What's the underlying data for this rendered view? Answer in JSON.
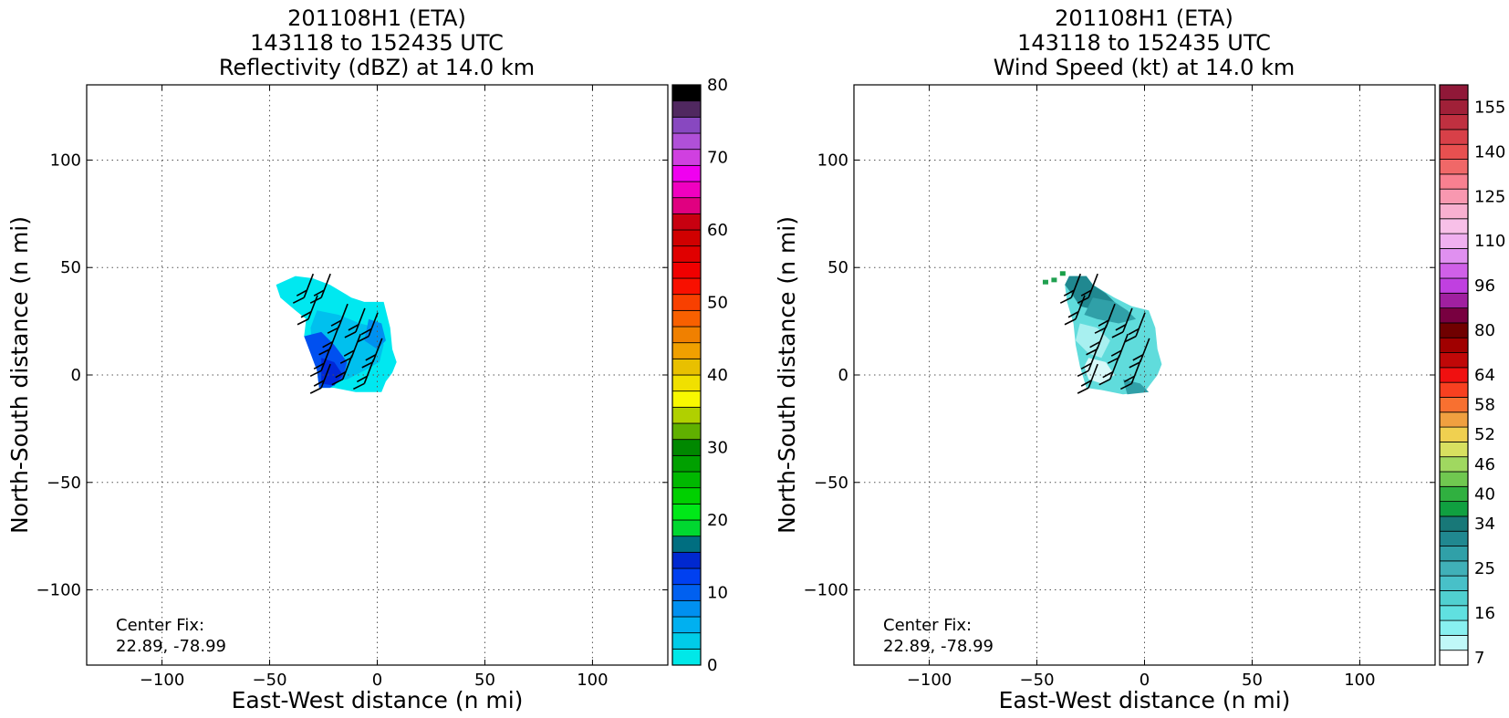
{
  "figure_title_note": "",
  "chart_data": [
    {
      "type": "heatmap",
      "title_lines": [
        "201108H1 (ETA)",
        "143118 to 152435 UTC",
        "Reflectivity (dBZ) at 14.0 km"
      ],
      "xlabel": "East-West distance (n mi)",
      "ylabel": "North-South distance (n mi)",
      "xlim": [
        -135,
        135
      ],
      "ylim": [
        -135,
        135
      ],
      "xticks": [
        -100,
        -50,
        0,
        50,
        100
      ],
      "yticks": [
        -100,
        -50,
        0,
        50,
        100
      ],
      "xtick_labels": [
        "−100",
        "−50",
        "0",
        "50",
        "100"
      ],
      "ytick_labels": [
        "−100",
        "−50",
        "0",
        "50",
        "100"
      ],
      "grid": true,
      "annotation_lines": [
        "Center Fix:",
        "22.89, -78.99"
      ],
      "colorbar": {
        "label_values": [
          0,
          10,
          20,
          30,
          40,
          50,
          60,
          70,
          80
        ],
        "label_texts": [
          "0",
          "10",
          "20",
          "30",
          "40",
          "50",
          "60",
          "70",
          "80"
        ],
        "vmin": 0,
        "vmax": 80,
        "colors": [
          "#00e8e8",
          "#00cce8",
          "#00b0f0",
          "#0090f0",
          "#0060f0",
          "#0040f0",
          "#0028d0",
          "#006e80",
          "#00d830",
          "#00e818",
          "#00d000",
          "#00b800",
          "#00a000",
          "#008800",
          "#60b000",
          "#b0d000",
          "#f8f800",
          "#f0e000",
          "#e8c000",
          "#f0a000",
          "#f08000",
          "#f86000",
          "#f84000",
          "#f81000",
          "#f00000",
          "#e00000",
          "#d00000",
          "#c80010",
          "#e00080",
          "#f000c0",
          "#f000f0",
          "#d040e0",
          "#b050d8",
          "#8848c0",
          "#502860",
          "#000000"
        ]
      },
      "field": {
        "polygon": [
          [
            -47,
            42
          ],
          [
            -38,
            46
          ],
          [
            -30,
            45
          ],
          [
            -22,
            42
          ],
          [
            -12,
            36
          ],
          [
            -6,
            34
          ],
          [
            3,
            34
          ],
          [
            6,
            22
          ],
          [
            7,
            12
          ],
          [
            9,
            6
          ],
          [
            7,
            1
          ],
          [
            4,
            -3
          ],
          [
            2,
            -8
          ],
          [
            -10,
            -8
          ],
          [
            -20,
            -6
          ],
          [
            -27,
            -6
          ],
          [
            -28,
            2
          ],
          [
            -30,
            10
          ],
          [
            -34,
            18
          ],
          [
            -33,
            26
          ],
          [
            -38,
            30
          ],
          [
            -45,
            36
          ]
        ],
        "colors": [
          {
            "poly": [
              [
                -47,
                42
              ],
              [
                -38,
                46
              ],
              [
                -30,
                45
              ],
              [
                -22,
                42
              ],
              [
                -12,
                36
              ],
              [
                -6,
                34
              ],
              [
                3,
                34
              ],
              [
                6,
                22
              ],
              [
                7,
                12
              ],
              [
                9,
                6
              ],
              [
                7,
                1
              ],
              [
                4,
                -3
              ],
              [
                2,
                -8
              ],
              [
                -10,
                -8
              ],
              [
                -20,
                -6
              ],
              [
                -27,
                -6
              ],
              [
                -28,
                2
              ],
              [
                -30,
                10
              ],
              [
                -34,
                18
              ],
              [
                -33,
                26
              ],
              [
                -38,
                30
              ],
              [
                -45,
                36
              ]
            ],
            "fill": "#00e8f0"
          },
          {
            "poly": [
              [
                -28,
                30
              ],
              [
                -18,
                28
              ],
              [
                -8,
                24
              ],
              [
                0,
                22
              ],
              [
                3,
                14
              ],
              [
                1,
                6
              ],
              [
                -6,
                2
              ],
              [
                -14,
                -2
              ],
              [
                -22,
                -3
              ],
              [
                -28,
                2
              ],
              [
                -30,
                12
              ],
              [
                -31,
                22
              ]
            ],
            "fill": "#00c0ee"
          },
          {
            "poly": [
              [
                -34,
                18
              ],
              [
                -26,
                20
              ],
              [
                -20,
                14
              ],
              [
                -14,
                6
              ],
              [
                -16,
                -2
              ],
              [
                -22,
                -6
              ],
              [
                -27,
                -6
              ],
              [
                -28,
                2
              ],
              [
                -31,
                10
              ]
            ],
            "fill": "#0050f0"
          },
          {
            "poly": [
              [
                -26,
                8
              ],
              [
                -20,
                6
              ],
              [
                -16,
                0
              ],
              [
                -20,
                -5
              ],
              [
                -26,
                -4
              ]
            ],
            "fill": "#0028d8"
          },
          {
            "poly": [
              [
                -4,
                26
              ],
              [
                2,
                24
              ],
              [
                4,
                16
              ],
              [
                0,
                12
              ],
              [
                -6,
                16
              ]
            ],
            "fill": "#0090f0"
          }
        ]
      },
      "barbs": [
        [
          -34,
          36
        ],
        [
          -26,
          36
        ],
        [
          -32,
          26
        ],
        [
          -18,
          22
        ],
        [
          -10,
          20
        ],
        [
          -4,
          18
        ],
        [
          -22,
          12
        ],
        [
          -12,
          8
        ],
        [
          -2,
          6
        ],
        [
          -26,
          2
        ],
        [
          -16,
          -2
        ],
        [
          -6,
          -4
        ],
        [
          -26,
          -6
        ]
      ]
    },
    {
      "type": "heatmap",
      "title_lines": [
        "201108H1 (ETA)",
        "143118 to 152435 UTC",
        "Wind Speed (kt) at 14.0 km"
      ],
      "xlabel": "East-West distance (n mi)",
      "ylabel": "North-South distance (n mi)",
      "xlim": [
        -135,
        135
      ],
      "ylim": [
        -135,
        135
      ],
      "xticks": [
        -100,
        -50,
        0,
        50,
        100
      ],
      "yticks": [
        -100,
        -50,
        0,
        50,
        100
      ],
      "xtick_labels": [
        "−100",
        "−50",
        "0",
        "50",
        "100"
      ],
      "ytick_labels": [
        "−100",
        "−50",
        "0",
        "50",
        "100"
      ],
      "grid": true,
      "annotation_lines": [
        "Center Fix:",
        "22.89, -78.99"
      ],
      "colorbar": {
        "label_values": [
          7,
          16,
          25,
          34,
          40,
          46,
          52,
          58,
          64,
          80,
          96,
          110,
          125,
          140,
          155
        ],
        "label_texts": [
          "7",
          "16",
          "25",
          "34",
          "40",
          "46",
          "52",
          "58",
          "64",
          "80",
          "96",
          "110",
          "125",
          "140",
          "155"
        ],
        "colors": [
          "#ffffff",
          "#c0f8f8",
          "#88f0f0",
          "#60e0e0",
          "#50d0d0",
          "#48c0c8",
          "#40b0b8",
          "#30a0a8",
          "#208890",
          "#187878",
          "#10a040",
          "#30b040",
          "#70c850",
          "#a0d860",
          "#d8e060",
          "#f0d050",
          "#f0a040",
          "#f87030",
          "#f84020",
          "#f01010",
          "#c00808",
          "#a00000",
          "#700000",
          "#780040",
          "#a020a0",
          "#c040e0",
          "#d060e8",
          "#e090f0",
          "#f0b0f0",
          "#f8c0e8",
          "#f8b0d0",
          "#f898b0",
          "#f88090",
          "#f06868",
          "#e85050",
          "#d84048",
          "#c03040",
          "#a02038",
          "#901838"
        ],
        "ticks_at_band_index": [
          0,
          3,
          6,
          9,
          11,
          13,
          15,
          17,
          19,
          22,
          25,
          28,
          31,
          34,
          37
        ]
      },
      "field": {
        "colors": [
          {
            "poly": [
              [
                -35,
                46
              ],
              [
                -27,
                46
              ],
              [
                -24,
                42
              ],
              [
                -14,
                36
              ],
              [
                -6,
                32
              ],
              [
                2,
                30
              ],
              [
                5,
                22
              ],
              [
                6,
                12
              ],
              [
                8,
                5
              ],
              [
                6,
                0
              ],
              [
                3,
                -4
              ],
              [
                0,
                -8
              ],
              [
                -10,
                -9
              ],
              [
                -20,
                -7
              ],
              [
                -27,
                -6
              ],
              [
                -30,
                4
              ],
              [
                -32,
                14
              ],
              [
                -33,
                24
              ],
              [
                -36,
                34
              ],
              [
                -37,
                42
              ]
            ],
            "fill": "#60dcdc"
          },
          {
            "poly": [
              [
                -35,
                46
              ],
              [
                -27,
                46
              ],
              [
                -24,
                42
              ],
              [
                -18,
                38
              ],
              [
                -14,
                34
              ],
              [
                -22,
                30
              ],
              [
                -30,
                32
              ],
              [
                -34,
                38
              ],
              [
                -37,
                42
              ]
            ],
            "fill": "#208890"
          },
          {
            "poly": [
              [
                -24,
                36
              ],
              [
                -14,
                34
              ],
              [
                -8,
                30
              ],
              [
                -4,
                26
              ],
              [
                -12,
                24
              ],
              [
                -22,
                26
              ],
              [
                -28,
                28
              ]
            ],
            "fill": "#30a0a8"
          },
          {
            "poly": [
              [
                -30,
                24
              ],
              [
                -22,
                22
              ],
              [
                -16,
                16
              ],
              [
                -20,
                8
              ],
              [
                -26,
                10
              ],
              [
                -32,
                16
              ]
            ],
            "fill": "#a8f0f0"
          },
          {
            "poly": [
              [
                -26,
                8
              ],
              [
                -18,
                6
              ],
              [
                -14,
                0
              ],
              [
                -20,
                -4
              ],
              [
                -26,
                -2
              ],
              [
                -28,
                4
              ]
            ],
            "fill": "#d8f8f8"
          },
          {
            "poly": [
              [
                -10,
                -2
              ],
              [
                -2,
                -4
              ],
              [
                2,
                -8
              ],
              [
                -8,
                -9
              ]
            ],
            "fill": "#30a0a8"
          }
        ],
        "specks": [
          [
            -46,
            43,
            "#20a050"
          ],
          [
            -42,
            44,
            "#20a050"
          ],
          [
            -38,
            47,
            "#18a048"
          ]
        ]
      },
      "barbs": [
        [
          -34,
          36
        ],
        [
          -26,
          36
        ],
        [
          -32,
          26
        ],
        [
          -18,
          22
        ],
        [
          -10,
          20
        ],
        [
          -4,
          18
        ],
        [
          -22,
          12
        ],
        [
          -12,
          8
        ],
        [
          -2,
          6
        ],
        [
          -26,
          2
        ],
        [
          -16,
          -2
        ],
        [
          -6,
          -4
        ],
        [
          -26,
          -6
        ]
      ]
    }
  ]
}
